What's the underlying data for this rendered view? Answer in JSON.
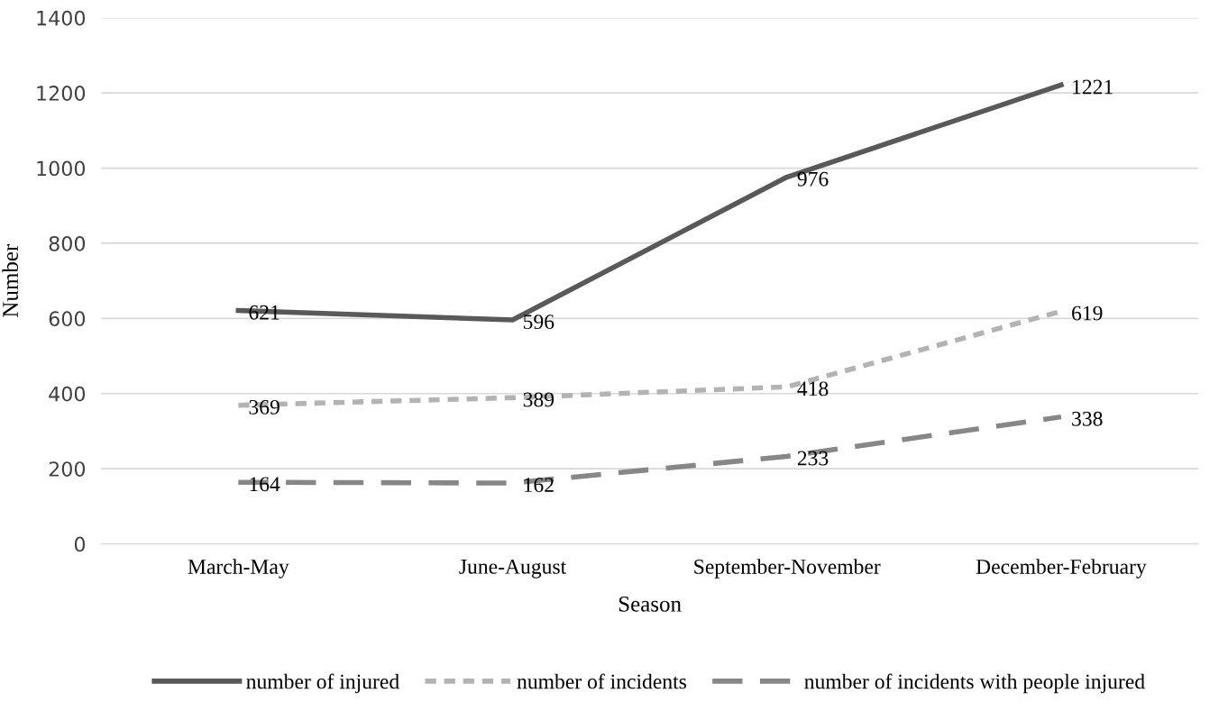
{
  "chart_data": {
    "type": "line",
    "xlabel": "Season",
    "ylabel": "Number",
    "categories": [
      "March-May",
      "June-August",
      "September-November",
      "December-February"
    ],
    "series": [
      {
        "name": "number of injured",
        "color": "#595959",
        "line_style": "solid",
        "values": [
          621,
          596,
          976,
          1221
        ]
      },
      {
        "name": "number of incidents",
        "color": "#b3b3b3",
        "line_style": "dotted",
        "values": [
          369,
          389,
          418,
          619
        ]
      },
      {
        "name": "number of incidents with people injured",
        "color": "#878787",
        "line_style": "dashed",
        "values": [
          164,
          162,
          233,
          338
        ]
      }
    ],
    "ylim": [
      0,
      1400
    ],
    "yticks": [
      0,
      200,
      400,
      600,
      800,
      1000,
      1200,
      1400
    ],
    "grid": "y",
    "legend": "bottom",
    "marker": "none",
    "data_labels": true
  }
}
